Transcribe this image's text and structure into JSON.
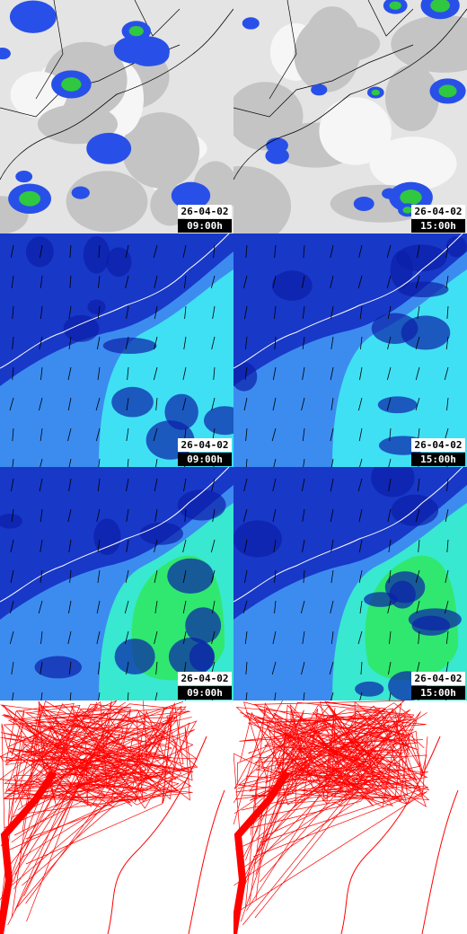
{
  "panels": [
    {
      "date": "26-04-02",
      "time": "09:00h"
    },
    {
      "date": "26-04-02",
      "time": "15:00h"
    },
    {
      "date": "26-04-02",
      "time": "09:00h"
    },
    {
      "date": "26-04-02",
      "time": "15:00h"
    },
    {
      "date": "26-04-02",
      "time": "09:00h"
    },
    {
      "date": "26-04-02",
      "time": "15:00h"
    }
  ]
}
